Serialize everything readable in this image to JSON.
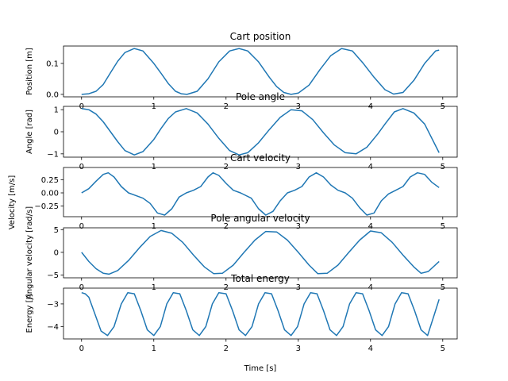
{
  "figure": {
    "xlabel": "Time [s]",
    "line_color": "#1f77b4"
  },
  "chart_data": [
    {
      "type": "line",
      "title": "Cart position",
      "ylabel": "Position [m]",
      "xlim": [
        -0.25,
        5.2
      ],
      "ylim": [
        -0.008,
        0.156
      ],
      "xticks": [
        0,
        1,
        2,
        3,
        4,
        5
      ],
      "yticks": [
        0.0,
        0.1
      ],
      "ytick_labels": [
        "0.0",
        "0.1"
      ],
      "grid": false,
      "x": [
        0,
        0.1,
        0.2,
        0.3,
        0.4,
        0.5,
        0.6,
        0.73,
        0.85,
        1.0,
        1.1,
        1.2,
        1.3,
        1.38,
        1.46,
        1.6,
        1.75,
        1.9,
        2.05,
        2.18,
        2.3,
        2.45,
        2.6,
        2.7,
        2.8,
        2.9,
        3.0,
        3.15,
        3.3,
        3.45,
        3.6,
        3.75,
        3.9,
        4.05,
        4.2,
        4.32,
        4.45,
        4.6,
        4.75,
        4.9,
        4.95
      ],
      "y": [
        0.0,
        0.002,
        0.01,
        0.032,
        0.07,
        0.107,
        0.135,
        0.148,
        0.14,
        0.1,
        0.068,
        0.035,
        0.01,
        0.002,
        0.0,
        0.01,
        0.05,
        0.105,
        0.14,
        0.148,
        0.14,
        0.105,
        0.055,
        0.025,
        0.006,
        0.0,
        0.004,
        0.03,
        0.08,
        0.125,
        0.148,
        0.14,
        0.1,
        0.055,
        0.015,
        0.001,
        0.006,
        0.045,
        0.1,
        0.14,
        0.143
      ]
    },
    {
      "type": "line",
      "title": "Pole angle",
      "ylabel": "Angle [rad]",
      "xlim": [
        -0.25,
        5.2
      ],
      "ylim": [
        -1.15,
        1.15
      ],
      "xticks": [
        0,
        1,
        2,
        3,
        4,
        5
      ],
      "yticks": [
        -1,
        0,
        1
      ],
      "ytick_labels": [
        "−1",
        "0",
        "1"
      ],
      "grid": false,
      "x": [
        0,
        0.1,
        0.2,
        0.3,
        0.4,
        0.5,
        0.6,
        0.73,
        0.85,
        1.0,
        1.1,
        1.2,
        1.3,
        1.45,
        1.6,
        1.75,
        1.9,
        2.05,
        2.18,
        2.3,
        2.45,
        2.6,
        2.75,
        2.9,
        3.05,
        3.2,
        3.35,
        3.5,
        3.65,
        3.8,
        3.95,
        4.1,
        4.2,
        4.33,
        4.45,
        4.6,
        4.75,
        4.95
      ],
      "y": [
        1.05,
        1.0,
        0.8,
        0.45,
        0.0,
        -0.45,
        -0.85,
        -1.05,
        -0.9,
        -0.35,
        0.15,
        0.6,
        0.9,
        1.05,
        0.85,
        0.35,
        -0.3,
        -0.85,
        -1.05,
        -0.95,
        -0.5,
        0.1,
        0.65,
        1.0,
        0.95,
        0.55,
        -0.05,
        -0.6,
        -0.95,
        -1.0,
        -0.7,
        -0.1,
        0.35,
        0.9,
        1.05,
        0.85,
        0.35,
        -0.95
      ]
    },
    {
      "type": "line",
      "title": "Cart velocity",
      "ylabel": "Velocity [m/s]",
      "xlim": [
        -0.25,
        5.2
      ],
      "ylim": [
        -0.45,
        0.48
      ],
      "xticks": [
        0,
        1,
        2,
        3,
        4,
        5
      ],
      "yticks": [
        0.25,
        0.0,
        -0.25
      ],
      "ytick_labels": [
        "0.25",
        "0.00",
        "−0.25"
      ],
      "grid": false,
      "x": [
        0,
        0.1,
        0.2,
        0.3,
        0.37,
        0.45,
        0.55,
        0.65,
        0.75,
        0.85,
        0.95,
        1.05,
        1.15,
        1.25,
        1.35,
        1.45,
        1.55,
        1.65,
        1.75,
        1.82,
        1.9,
        2.0,
        2.1,
        2.2,
        2.35,
        2.45,
        2.55,
        2.65,
        2.75,
        2.85,
        2.95,
        3.05,
        3.15,
        3.25,
        3.35,
        3.45,
        3.55,
        3.65,
        3.75,
        3.85,
        3.95,
        4.05,
        4.15,
        4.25,
        4.35,
        4.45,
        4.55,
        4.65,
        4.75,
        4.85,
        4.95
      ],
      "y": [
        0.0,
        0.08,
        0.22,
        0.35,
        0.38,
        0.3,
        0.12,
        0.0,
        -0.05,
        -0.1,
        -0.2,
        -0.38,
        -0.42,
        -0.3,
        -0.08,
        0.0,
        0.05,
        0.12,
        0.3,
        0.38,
        0.33,
        0.18,
        0.05,
        0.0,
        -0.1,
        -0.3,
        -0.42,
        -0.35,
        -0.15,
        0.0,
        0.05,
        0.12,
        0.3,
        0.38,
        0.3,
        0.15,
        0.05,
        0.0,
        -0.1,
        -0.28,
        -0.42,
        -0.38,
        -0.15,
        -0.02,
        0.05,
        0.12,
        0.3,
        0.38,
        0.35,
        0.2,
        0.1
      ]
    },
    {
      "type": "line",
      "title": "Pole angular velocity",
      "ylabel": "Angular velocity [rad/s]",
      "xlim": [
        -0.25,
        5.2
      ],
      "ylim": [
        -5.6,
        5.4
      ],
      "xticks": [
        0,
        1,
        2,
        3,
        4,
        5
      ],
      "yticks": [
        -5,
        0,
        5
      ],
      "ytick_labels": [
        "−5",
        "0",
        "5"
      ],
      "grid": false,
      "x": [
        0,
        0.1,
        0.2,
        0.3,
        0.38,
        0.5,
        0.65,
        0.8,
        0.95,
        1.1,
        1.25,
        1.4,
        1.55,
        1.7,
        1.83,
        1.95,
        2.1,
        2.25,
        2.4,
        2.55,
        2.7,
        2.85,
        3.0,
        3.15,
        3.27,
        3.4,
        3.55,
        3.7,
        3.85,
        4.0,
        4.15,
        4.3,
        4.45,
        4.6,
        4.7,
        4.8,
        4.95
      ],
      "y": [
        0.0,
        -2.0,
        -3.6,
        -4.6,
        -4.8,
        -4.0,
        -1.8,
        1.0,
        3.5,
        4.8,
        4.2,
        2.2,
        -0.6,
        -3.2,
        -4.7,
        -4.6,
        -2.8,
        0.0,
        2.7,
        4.6,
        4.5,
        2.7,
        0.0,
        -2.8,
        -4.7,
        -4.6,
        -2.8,
        0.0,
        2.7,
        4.7,
        4.3,
        2.2,
        -0.6,
        -3.2,
        -4.6,
        -4.2,
        -2.0
      ]
    },
    {
      "type": "line",
      "title": "Total energy",
      "ylabel": "Energy [J]",
      "xlim": [
        -0.25,
        5.2
      ],
      "ylim": [
        -4.55,
        -2.3
      ],
      "xticks": [
        0,
        1,
        2,
        3,
        4,
        5
      ],
      "xtick_labels": [
        "0",
        "1",
        "2",
        "3",
        "4",
        "5"
      ],
      "yticks": [
        -3,
        -4
      ],
      "ytick_labels": [
        "−3",
        "−4"
      ],
      "grid": false,
      "x": [
        0,
        0.05,
        0.1,
        0.18,
        0.27,
        0.36,
        0.45,
        0.55,
        0.64,
        0.73,
        0.82,
        0.91,
        1.0,
        1.09,
        1.18,
        1.27,
        1.36,
        1.45,
        1.54,
        1.63,
        1.72,
        1.81,
        1.9,
        2.0,
        2.09,
        2.18,
        2.27,
        2.36,
        2.45,
        2.54,
        2.63,
        2.72,
        2.81,
        2.9,
        2.99,
        3.08,
        3.17,
        3.26,
        3.35,
        3.44,
        3.53,
        3.62,
        3.71,
        3.8,
        3.89,
        3.98,
        4.07,
        4.16,
        4.25,
        4.34,
        4.43,
        4.52,
        4.61,
        4.7,
        4.79,
        4.88,
        4.95
      ],
      "y": [
        -2.5,
        -2.55,
        -2.7,
        -3.4,
        -4.2,
        -4.4,
        -4.0,
        -3.0,
        -2.5,
        -2.55,
        -3.3,
        -4.15,
        -4.4,
        -4.0,
        -3.0,
        -2.5,
        -2.55,
        -3.3,
        -4.15,
        -4.4,
        -4.0,
        -3.0,
        -2.5,
        -2.55,
        -3.3,
        -4.15,
        -4.4,
        -4.0,
        -3.0,
        -2.5,
        -2.55,
        -3.3,
        -4.15,
        -4.4,
        -4.0,
        -3.0,
        -2.5,
        -2.55,
        -3.3,
        -4.15,
        -4.4,
        -4.0,
        -3.0,
        -2.5,
        -2.55,
        -3.3,
        -4.15,
        -4.4,
        -4.0,
        -3.0,
        -2.5,
        -2.55,
        -3.3,
        -4.15,
        -4.4,
        -3.5,
        -2.8
      ]
    }
  ]
}
